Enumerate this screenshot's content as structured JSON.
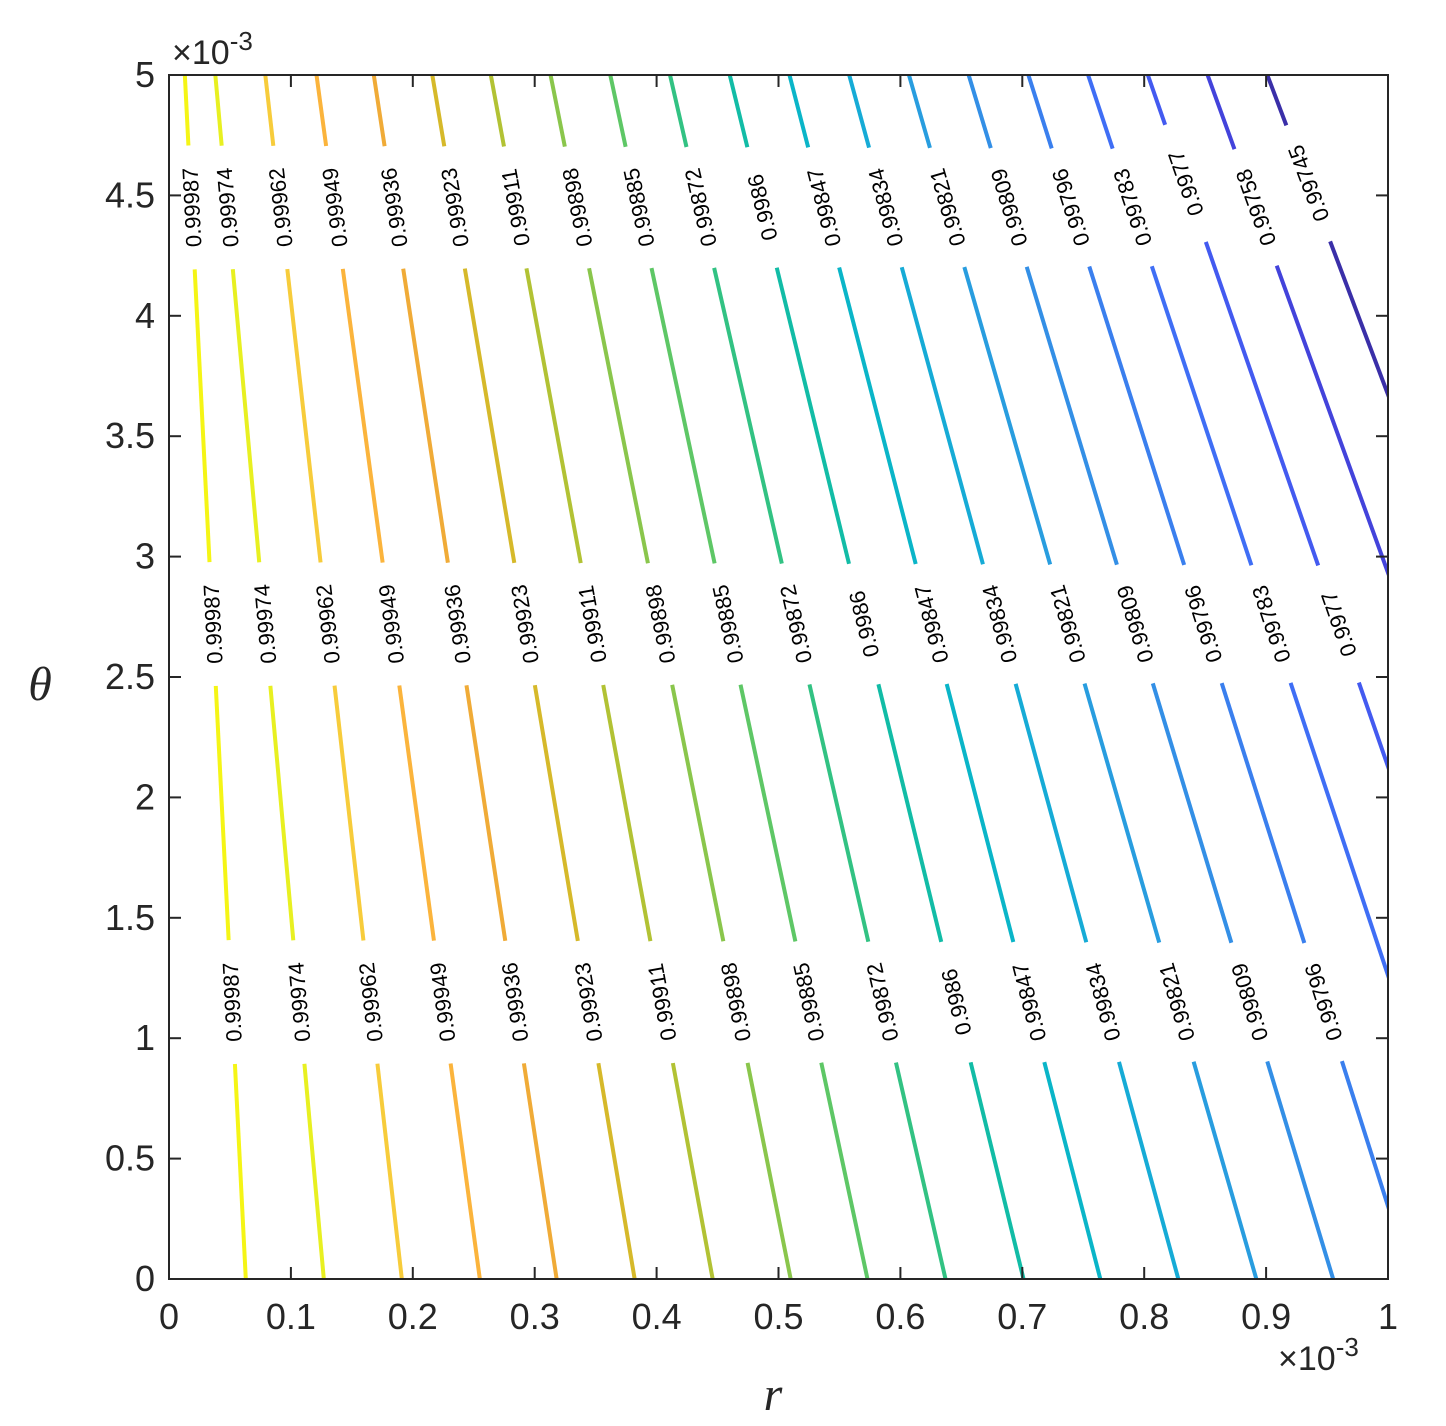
{
  "chart_data": {
    "type": "contour",
    "xlabel": "r",
    "ylabel": "θ",
    "x_exponent": "×10",
    "x_exponent_power": "-3",
    "y_exponent": "×10",
    "y_exponent_power": "-3",
    "xlim": [
      0,
      1
    ],
    "ylim": [
      0,
      5
    ],
    "x_ticks": [
      "0",
      "0.1",
      "0.2",
      "0.3",
      "0.4",
      "0.5",
      "0.6",
      "0.7",
      "0.8",
      "0.9",
      "1"
    ],
    "y_ticks": [
      "0",
      "0.5",
      "1",
      "1.5",
      "2",
      "2.5",
      "3",
      "3.5",
      "4",
      "4.5",
      "5"
    ],
    "grid": false,
    "levels": [
      {
        "label": "0.99987",
        "color": "#f5f516",
        "r_at_0": 0.063,
        "r_at_5": 0.013,
        "label_ys": [
          4.45,
          2.72,
          1.15
        ]
      },
      {
        "label": "0.99974",
        "color": "#e8f021",
        "r_at_0": 0.127,
        "r_at_5": 0.038,
        "label_ys": [
          4.45,
          2.72,
          1.15
        ]
      },
      {
        "label": "0.99962",
        "color": "#f7cc3b",
        "r_at_0": 0.191,
        "r_at_5": 0.079,
        "label_ys": [
          4.45,
          2.72,
          1.15
        ]
      },
      {
        "label": "0.99949",
        "color": "#fbb43c",
        "r_at_0": 0.255,
        "r_at_5": 0.121,
        "label_ys": [
          4.45,
          2.72,
          1.15
        ]
      },
      {
        "label": "0.99936",
        "color": "#f0ab37",
        "r_at_0": 0.318,
        "r_at_5": 0.168,
        "label_ys": [
          4.45,
          2.72,
          1.15
        ]
      },
      {
        "label": "0.99923",
        "color": "#d6b92a",
        "r_at_0": 0.382,
        "r_at_5": 0.216,
        "label_ys": [
          4.45,
          2.72,
          1.15
        ]
      },
      {
        "label": "0.99911",
        "color": "#b2c234",
        "r_at_0": 0.446,
        "r_at_5": 0.264,
        "label_ys": [
          4.45,
          2.72,
          1.15
        ]
      },
      {
        "label": "0.99898",
        "color": "#8ac64c",
        "r_at_0": 0.51,
        "r_at_5": 0.313,
        "label_ys": [
          4.45,
          2.72,
          1.15
        ]
      },
      {
        "label": "0.99885",
        "color": "#5ec766",
        "r_at_0": 0.573,
        "r_at_5": 0.362,
        "label_ys": [
          4.45,
          2.72,
          1.15
        ]
      },
      {
        "label": "0.99872",
        "color": "#32c283",
        "r_at_0": 0.637,
        "r_at_5": 0.411,
        "label_ys": [
          4.45,
          2.72,
          1.15
        ]
      },
      {
        "label": "0.9986",
        "color": "#12bca6",
        "r_at_0": 0.701,
        "r_at_5": 0.46,
        "label_ys": [
          4.45,
          2.72,
          1.15
        ]
      },
      {
        "label": "0.99847",
        "color": "#0ab5c8",
        "r_at_0": 0.764,
        "r_at_5": 0.509,
        "label_ys": [
          4.45,
          2.72,
          1.15
        ]
      },
      {
        "label": "0.99834",
        "color": "#16abd6",
        "r_at_0": 0.828,
        "r_at_5": 0.558,
        "label_ys": [
          4.45,
          2.72,
          1.15
        ]
      },
      {
        "label": "0.99821",
        "color": "#289ddf",
        "r_at_0": 0.892,
        "r_at_5": 0.607,
        "label_ys": [
          4.45,
          2.72,
          1.15
        ]
      },
      {
        "label": "0.99809",
        "color": "#338fe6",
        "r_at_0": 0.955,
        "r_at_5": 0.656,
        "label_ys": [
          4.45,
          2.72,
          1.15
        ]
      },
      {
        "label": "0.99796",
        "color": "#3a7fee",
        "r_at_0": 1.019,
        "r_at_5": 0.705,
        "label_ys": [
          4.45,
          2.72,
          1.15
        ]
      },
      {
        "label": "0.99783",
        "color": "#3f6ef5",
        "r_at_0": 1.083,
        "r_at_5": 0.754,
        "label_ys": [
          4.45,
          2.72
        ]
      },
      {
        "label": "0.9977",
        "color": "#435af0",
        "r_at_0": 1.146,
        "r_at_5": 0.803,
        "label_ys": [
          4.55,
          2.72
        ]
      },
      {
        "label": "0.99758",
        "color": "#4343db",
        "r_at_0": 1.21,
        "r_at_5": 0.852,
        "label_ys": [
          4.45
        ]
      },
      {
        "label": "0.99745",
        "color": "#3a2fa8",
        "r_at_0": 1.274,
        "r_at_5": 0.901,
        "label_ys": [
          4.55
        ]
      }
    ]
  }
}
